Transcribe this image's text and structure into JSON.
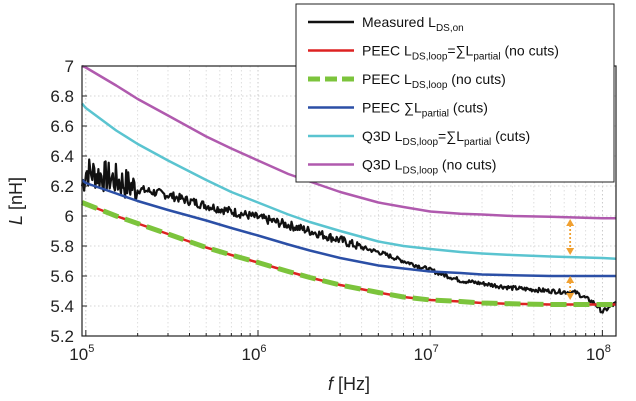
{
  "chart_data": {
    "type": "line",
    "xscale": "log",
    "xlim": [
      95000,
      120000000
    ],
    "ylim": [
      5.2,
      7.0
    ],
    "grid": true,
    "legend_position": "top-right",
    "x_ticks": [
      {
        "value": 100000,
        "base": "10",
        "exp": "5"
      },
      {
        "value": 1000000,
        "base": "10",
        "exp": "6"
      },
      {
        "value": 10000000,
        "base": "10",
        "exp": "7"
      },
      {
        "value": 100000000,
        "base": "10",
        "exp": "8"
      }
    ],
    "y_ticks": [
      "5.2",
      "5.4",
      "5.6",
      "5.8",
      "6",
      "6.2",
      "6.4",
      "6.6",
      "6.8",
      "7"
    ],
    "xlabel": {
      "var": "f",
      "unit": " [Hz]"
    },
    "ylabel": {
      "var": "L",
      "unit": " [nH]"
    },
    "series": [
      {
        "key": "measured",
        "legend": [
          {
            "t": "Measured L"
          },
          {
            "t": "DS,on",
            "sub": true
          }
        ],
        "color": "#111111",
        "noisy": true,
        "x": [
          95000,
          100000,
          150000,
          200000,
          300000,
          500000,
          700000,
          1000000,
          1500000,
          2000000,
          3000000,
          4000000,
          5000000,
          7000000,
          10000000,
          15000000,
          20000000,
          30000000,
          50000000,
          70000000,
          90000000,
          100000000,
          120000000
        ],
        "y": [
          6.2,
          6.3,
          6.24,
          6.18,
          6.14,
          6.07,
          6.03,
          5.99,
          5.94,
          5.9,
          5.84,
          5.79,
          5.76,
          5.7,
          5.64,
          5.57,
          5.55,
          5.52,
          5.5,
          5.49,
          5.42,
          5.36,
          5.42
        ]
      },
      {
        "key": "peec_cuts_equal",
        "legend": [
          {
            "t": "PEEC L"
          },
          {
            "t": "DS,loop",
            "sub": true
          },
          {
            "t": "=∑L"
          },
          {
            "t": "partial",
            "sub": true
          },
          {
            "t": " (no cuts)"
          }
        ],
        "color": "#dd2222",
        "x": [
          95000,
          100000,
          150000,
          200000,
          300000,
          500000,
          700000,
          1000000,
          1500000,
          2000000,
          3000000,
          5000000,
          7000000,
          10000000,
          15000000,
          20000000,
          30000000,
          50000000,
          70000000,
          100000000,
          120000000
        ],
        "y": [
          6.09,
          6.08,
          6.0,
          5.95,
          5.88,
          5.79,
          5.74,
          5.69,
          5.63,
          5.59,
          5.54,
          5.49,
          5.46,
          5.44,
          5.43,
          5.42,
          5.415,
          5.41,
          5.41,
          5.41,
          5.41
        ]
      },
      {
        "key": "peec_loop",
        "legend": [
          {
            "t": "PEEC L"
          },
          {
            "t": "DS,loop",
            "sub": true
          },
          {
            "t": " (no cuts)"
          }
        ],
        "color": "#7cc43c",
        "dashed": true,
        "x": [
          95000,
          100000,
          150000,
          200000,
          300000,
          500000,
          700000,
          1000000,
          1500000,
          2000000,
          3000000,
          5000000,
          7000000,
          10000000,
          15000000,
          20000000,
          30000000,
          50000000,
          70000000,
          100000000,
          120000000
        ],
        "y": [
          6.09,
          6.08,
          6.0,
          5.95,
          5.88,
          5.79,
          5.74,
          5.69,
          5.63,
          5.59,
          5.54,
          5.49,
          5.46,
          5.44,
          5.43,
          5.42,
          5.415,
          5.41,
          5.41,
          5.41,
          5.41
        ]
      },
      {
        "key": "peec_partial",
        "legend": [
          {
            "t": "PEEC ∑L"
          },
          {
            "t": "partial",
            "sub": true
          },
          {
            "t": " (cuts)"
          }
        ],
        "color": "#2b4fa6",
        "x": [
          95000,
          100000,
          150000,
          200000,
          300000,
          500000,
          700000,
          1000000,
          1500000,
          2000000,
          3000000,
          5000000,
          7000000,
          10000000,
          15000000,
          20000000,
          30000000,
          50000000,
          70000000,
          100000000,
          120000000
        ],
        "y": [
          6.24,
          6.22,
          6.15,
          6.1,
          6.04,
          5.97,
          5.92,
          5.87,
          5.81,
          5.77,
          5.72,
          5.67,
          5.65,
          5.63,
          5.62,
          5.61,
          5.605,
          5.6,
          5.6,
          5.6,
          5.6
        ]
      },
      {
        "key": "q3d_equal",
        "legend": [
          {
            "t": "Q3D L"
          },
          {
            "t": "DS,loop",
            "sub": true
          },
          {
            "t": "=∑L"
          },
          {
            "t": "partial",
            "sub": true
          },
          {
            "t": " (cuts)"
          }
        ],
        "color": "#5ac4d0",
        "x": [
          95000,
          100000,
          150000,
          200000,
          300000,
          500000,
          700000,
          1000000,
          1500000,
          2000000,
          3000000,
          5000000,
          7000000,
          10000000,
          15000000,
          20000000,
          30000000,
          50000000,
          70000000,
          100000000,
          120000000
        ],
        "y": [
          6.75,
          6.72,
          6.57,
          6.48,
          6.37,
          6.24,
          6.16,
          6.09,
          6.01,
          5.96,
          5.9,
          5.83,
          5.8,
          5.78,
          5.76,
          5.75,
          5.74,
          5.73,
          5.725,
          5.72,
          5.715
        ]
      },
      {
        "key": "q3d_loop",
        "legend": [
          {
            "t": "Q3D L"
          },
          {
            "t": "DS,loop",
            "sub": true
          },
          {
            "t": " (no cuts)"
          }
        ],
        "color": "#b05aae",
        "x": [
          95000,
          100000,
          150000,
          200000,
          300000,
          500000,
          700000,
          1000000,
          1500000,
          2000000,
          3000000,
          5000000,
          7000000,
          10000000,
          15000000,
          20000000,
          30000000,
          50000000,
          70000000,
          100000000,
          120000000
        ],
        "y": [
          7.0,
          6.99,
          6.87,
          6.78,
          6.67,
          6.53,
          6.45,
          6.37,
          6.28,
          6.23,
          6.16,
          6.09,
          6.06,
          6.03,
          6.015,
          6.01,
          6.0,
          5.995,
          5.99,
          5.985,
          5.985
        ]
      }
    ],
    "annotations": [
      {
        "type": "double-arrow",
        "x": 65000000,
        "y1": 5.74,
        "y2": 5.98,
        "color": "#f0a030"
      },
      {
        "type": "double-arrow",
        "x": 65000000,
        "y1": 5.44,
        "y2": 5.6,
        "color": "#f0a030"
      }
    ]
  }
}
